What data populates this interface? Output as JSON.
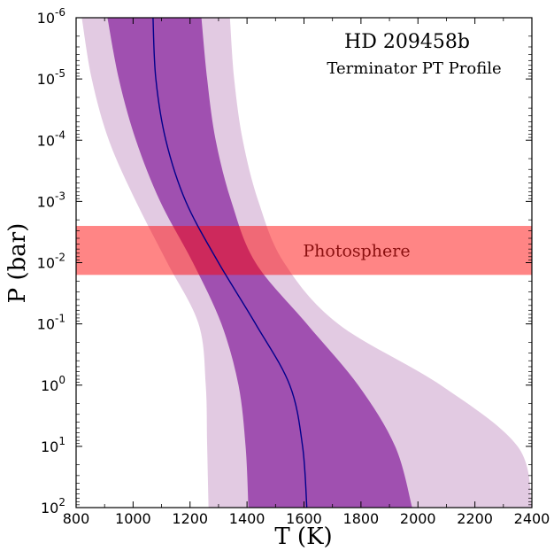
{
  "chart_data": {
    "type": "area",
    "title": "HD 209458b",
    "subtitle": "Terminator PT Profile",
    "xlabel": "T (K)",
    "ylabel": "P (bar)",
    "xlim": [
      800,
      2400
    ],
    "ylim_log10": [
      2,
      -6
    ],
    "y_scale": "log",
    "y_inverted": true,
    "x_ticks": [
      800,
      1000,
      1200,
      1400,
      1600,
      1800,
      2000,
      2200,
      2400
    ],
    "x_tick_labels": [
      "800",
      "1000",
      "1200",
      "1400",
      "1600",
      "1800",
      "2000",
      "2200",
      "2400"
    ],
    "y_tick_exponents": [
      -6,
      -5,
      -4,
      -3,
      -2,
      -1,
      0,
      1,
      2
    ],
    "y_tick_base": "10",
    "grid": false,
    "pressure_log10": [
      -6,
      -5,
      -4,
      -3,
      -2,
      -1,
      0,
      1,
      2
    ],
    "median_T": [
      1070,
      1080,
      1115,
      1185,
      1300,
      1430,
      1550,
      1595,
      1610
    ],
    "sigma1_low": [
      910,
      950,
      1010,
      1095,
      1210,
      1310,
      1370,
      1395,
      1405
    ],
    "sigma1_high": [
      1240,
      1260,
      1290,
      1345,
      1430,
      1610,
      1790,
      1920,
      1980
    ],
    "sigma2_low": [
      820,
      855,
      915,
      1010,
      1120,
      1230,
      1255,
      1260,
      1265
    ],
    "sigma2_high": [
      1340,
      1355,
      1385,
      1440,
      1530,
      1720,
      2080,
      2350,
      2400
    ],
    "photosphere": {
      "label": "Photosphere",
      "p_log10_range": [
        -2.6,
        -1.8
      ],
      "color": "#ff0000"
    },
    "colors": {
      "median_line": "#00008b",
      "sigma1_fill": "#a050b0",
      "sigma2_fill": "#e2cae2"
    }
  }
}
